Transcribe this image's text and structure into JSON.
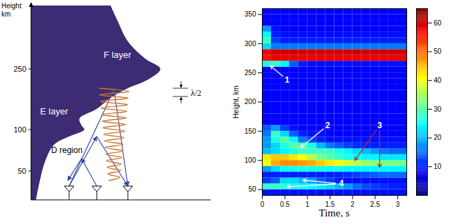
{
  "diagram": {
    "axis_title": [
      "Height",
      "km"
    ],
    "ticks": [
      250,
      100,
      50
    ],
    "layers": [
      "F layer",
      "E layer",
      "D region"
    ],
    "wavelength_label": "λ/2"
  },
  "chart_data": {
    "type": "heatmap",
    "x_label": "Time, s",
    "y_label": "Height, km",
    "xlim": [
      0,
      3.2
    ],
    "xticks": [
      0,
      0.5,
      1,
      1.5,
      2,
      2.5,
      3
    ],
    "ylim": [
      40,
      360
    ],
    "yticks": [
      50,
      100,
      150,
      200,
      250,
      300,
      350
    ],
    "x_edges": [
      0,
      0.2,
      0.4,
      0.6,
      0.8,
      1,
      1.2,
      1.4,
      1.6,
      1.8,
      2,
      2.2,
      2.4,
      2.6,
      2.8,
      3,
      3.2
    ],
    "y_edges": [
      40,
      50,
      60,
      70,
      80,
      90,
      100,
      110,
      120,
      130,
      140,
      150,
      160,
      170,
      180,
      190,
      200,
      210,
      220,
      230,
      240,
      250,
      260,
      270,
      280,
      290,
      300,
      310,
      320,
      330,
      340,
      350,
      360
    ],
    "cells": [
      [
        9,
        9,
        9,
        9,
        9,
        9,
        9,
        9,
        9,
        9,
        9,
        9,
        9,
        9,
        9,
        9
      ],
      [
        28,
        28,
        27,
        26,
        25,
        24,
        23,
        22,
        20,
        18,
        15,
        13,
        12,
        11,
        10,
        10
      ],
      [
        12,
        14,
        22,
        22,
        20,
        18,
        14,
        12,
        10,
        9,
        9,
        9,
        9,
        9,
        9,
        9
      ],
      [
        10,
        10,
        10,
        10,
        10,
        10,
        10,
        10,
        10,
        11,
        12,
        13,
        14,
        15,
        15,
        15
      ],
      [
        18,
        22,
        25,
        26,
        26,
        26,
        26,
        25,
        25,
        24,
        24,
        24,
        24,
        24,
        24,
        24
      ],
      [
        40,
        46,
        48,
        48,
        47,
        46,
        44,
        42,
        40,
        38,
        36,
        34,
        33,
        32,
        32,
        32
      ],
      [
        42,
        44,
        44,
        42,
        40,
        36,
        32,
        30,
        28,
        26,
        25,
        24,
        24,
        23,
        23,
        23
      ],
      [
        20,
        22,
        24,
        26,
        28,
        28,
        28,
        28,
        26,
        24,
        22,
        20,
        18,
        16,
        15,
        15
      ],
      [
        18,
        22,
        26,
        30,
        30,
        26,
        20,
        16,
        14,
        12,
        11,
        10,
        10,
        10,
        10,
        10
      ],
      [
        18,
        26,
        30,
        24,
        16,
        12,
        10,
        9,
        9,
        9,
        9,
        9,
        9,
        9,
        9,
        9
      ],
      [
        16,
        28,
        22,
        14,
        10,
        9,
        9,
        8,
        8,
        8,
        8,
        8,
        8,
        8,
        8,
        8
      ],
      [
        14,
        18,
        12,
        9,
        8,
        8,
        8,
        8,
        8,
        8,
        8,
        8,
        8,
        8,
        8,
        8
      ],
      [
        8,
        8,
        8,
        8,
        8,
        8,
        8,
        8,
        8,
        8,
        8,
        8,
        8,
        8,
        8,
        8
      ],
      [
        8,
        8,
        8,
        8,
        8,
        8,
        8,
        8,
        8,
        8,
        8,
        8,
        8,
        8,
        8,
        8
      ],
      [
        8,
        8,
        8,
        8,
        8,
        8,
        8,
        8,
        8,
        8,
        8,
        8,
        8,
        8,
        8,
        8
      ],
      [
        8,
        8,
        8,
        8,
        8,
        8,
        8,
        8,
        8,
        8,
        8,
        8,
        8,
        8,
        8,
        8
      ],
      [
        8,
        8,
        8,
        8,
        8,
        8,
        8,
        8,
        8,
        8,
        8,
        8,
        8,
        8,
        8,
        8
      ],
      [
        8,
        8,
        8,
        8,
        8,
        8,
        8,
        8,
        8,
        8,
        8,
        8,
        8,
        8,
        8,
        8
      ],
      [
        8,
        8,
        8,
        8,
        8,
        8,
        8,
        8,
        8,
        8,
        8,
        8,
        8,
        8,
        8,
        8
      ],
      [
        8,
        8,
        8,
        8,
        8,
        8,
        8,
        8,
        8,
        8,
        8,
        8,
        8,
        8,
        8,
        8
      ],
      [
        8,
        8,
        8,
        8,
        8,
        8,
        8,
        8,
        8,
        8,
        8,
        8,
        8,
        8,
        8,
        8
      ],
      [
        8,
        8,
        8,
        8,
        8,
        8,
        8,
        8,
        8,
        8,
        8,
        8,
        8,
        8,
        8,
        8
      ],
      [
        26,
        28,
        24,
        14,
        10,
        9,
        9,
        9,
        9,
        9,
        9,
        9,
        9,
        9,
        9,
        9
      ],
      [
        56,
        58,
        58,
        58,
        58,
        58,
        58,
        58,
        58,
        58,
        58,
        58,
        58,
        58,
        58,
        58
      ],
      [
        58,
        60,
        60,
        60,
        60,
        60,
        60,
        60,
        60,
        60,
        60,
        60,
        60,
        60,
        60,
        60
      ],
      [
        22,
        16,
        16,
        16,
        16,
        16,
        16,
        16,
        16,
        16,
        16,
        16,
        16,
        16,
        16,
        16
      ],
      [
        28,
        12,
        10,
        10,
        10,
        10,
        10,
        10,
        10,
        10,
        10,
        10,
        10,
        10,
        10,
        10
      ],
      [
        24,
        10,
        9,
        9,
        9,
        9,
        9,
        9,
        9,
        9,
        9,
        9,
        9,
        9,
        9,
        9
      ],
      [
        18,
        9,
        8,
        8,
        8,
        8,
        8,
        8,
        8,
        8,
        8,
        8,
        8,
        8,
        8,
        8
      ],
      [
        8,
        8,
        8,
        8,
        8,
        8,
        8,
        8,
        8,
        8,
        8,
        8,
        8,
        8,
        8,
        8
      ],
      [
        8,
        8,
        8,
        8,
        8,
        8,
        8,
        8,
        8,
        8,
        8,
        8,
        8,
        8,
        8,
        8
      ],
      [
        8,
        8,
        8,
        8,
        8,
        8,
        8,
        8,
        8,
        8,
        8,
        8,
        8,
        8,
        8,
        8
      ]
    ],
    "colorbar": {
      "range": [
        0,
        65
      ],
      "ticks": [
        10,
        20,
        30,
        40,
        50,
        60
      ]
    },
    "annotations": [
      {
        "text": "1",
        "x": 0.55,
        "y": 238,
        "targets": [
          [
            0.18,
            262
          ]
        ],
        "color": "#ffffff"
      },
      {
        "text": "2",
        "x": 1.45,
        "y": 160,
        "targets": [
          [
            0.85,
            122
          ]
        ],
        "color": "#ffffff"
      },
      {
        "text": "3",
        "x": 2.6,
        "y": 160,
        "targets": [
          [
            2.05,
            100
          ],
          [
            2.6,
            88
          ]
        ],
        "color": "#b0302a"
      },
      {
        "text": "4",
        "x": 1.75,
        "y": 60,
        "targets": [
          [
            0.9,
            66
          ],
          [
            0.55,
            55
          ]
        ],
        "color": "#ffffff"
      }
    ]
  }
}
